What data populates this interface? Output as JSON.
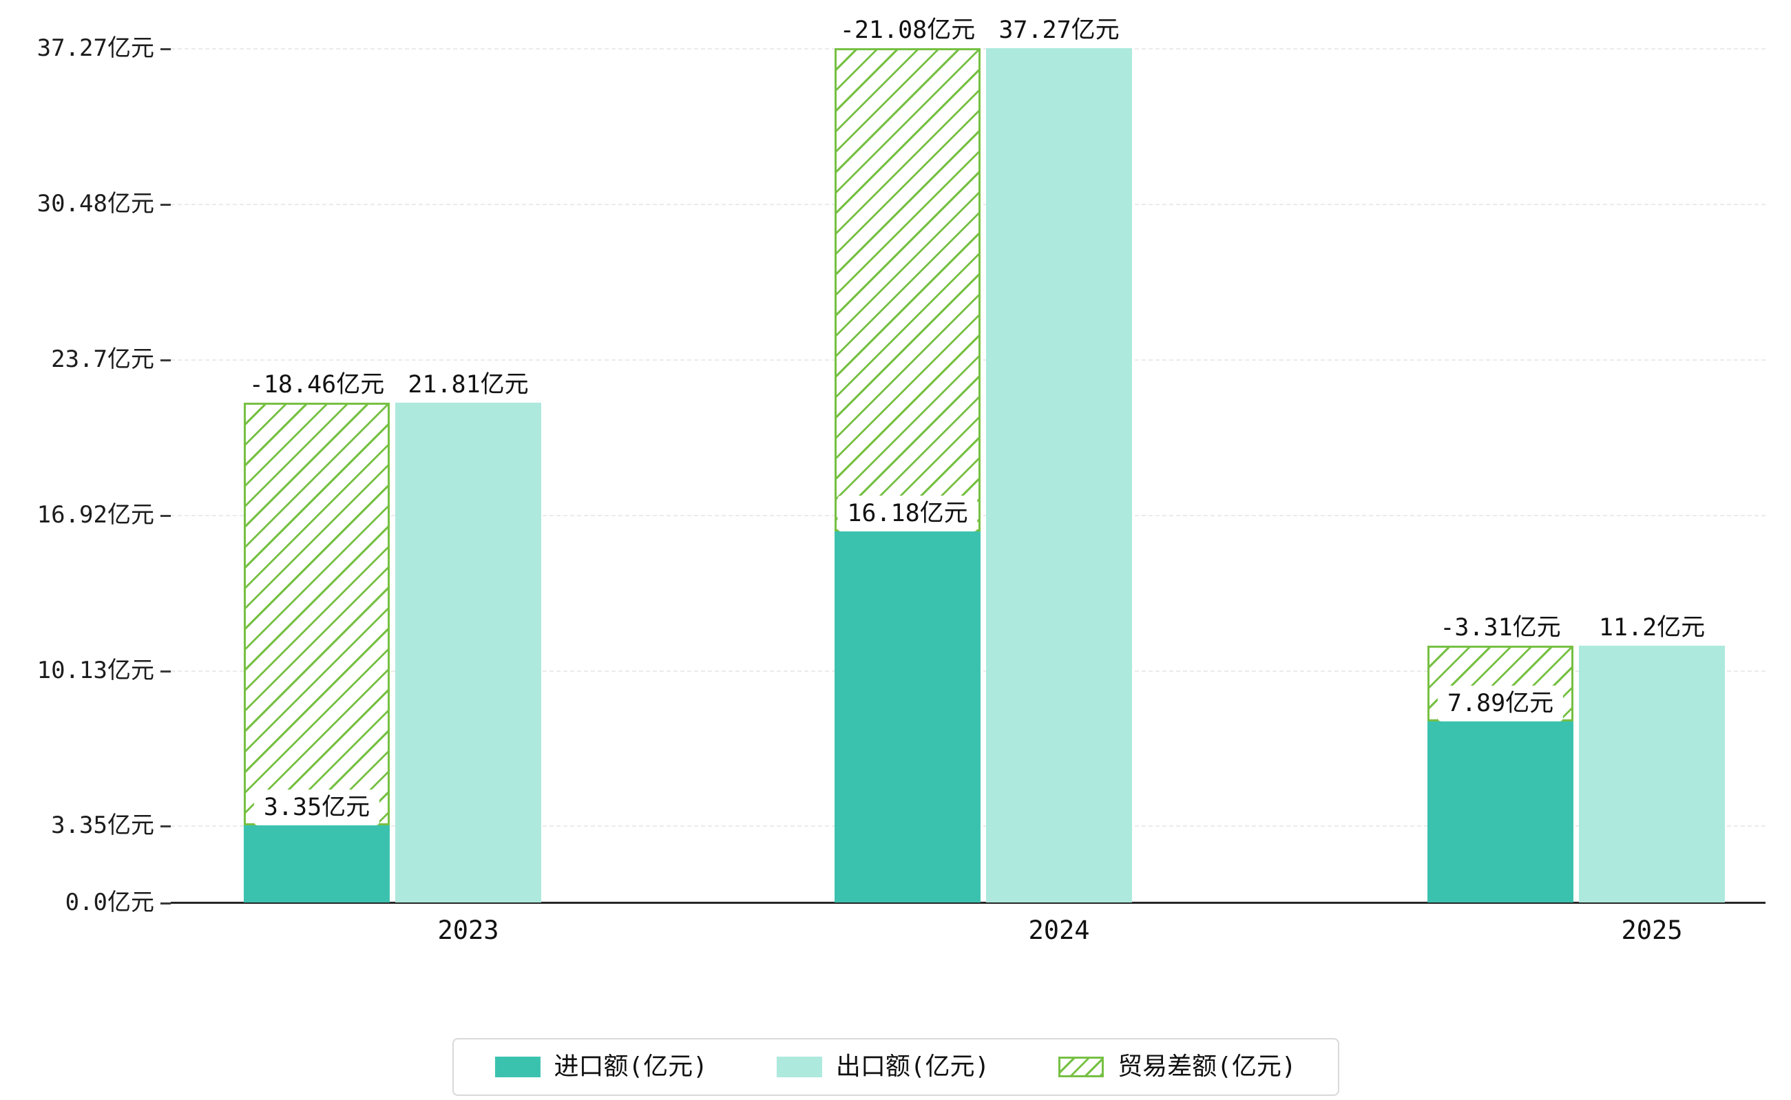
{
  "chart_data": {
    "type": "bar",
    "title": "",
    "categories": [
      "2023",
      "2024",
      "2025"
    ],
    "series": [
      {
        "name": "进口额(亿元)",
        "values": [
          3.35,
          16.18,
          7.89
        ],
        "color": "#3BC2AF",
        "style": "solid"
      },
      {
        "name": "出口额(亿元)",
        "values": [
          21.81,
          37.27,
          11.2
        ],
        "color": "#ADE9DD",
        "style": "solid"
      },
      {
        "name": "贸易差额(亿元)",
        "values": [
          -18.46,
          -21.08,
          -3.31
        ],
        "color": "#76C043",
        "style": "hatched"
      }
    ],
    "bar_labels": {
      "import": [
        "3.35亿元",
        "16.18亿元",
        "7.89亿元"
      ],
      "export": [
        "21.81亿元",
        "37.27亿元",
        "11.2亿元"
      ],
      "balance": [
        "-18.46亿元",
        "-21.08亿元",
        "-3.31亿元"
      ]
    },
    "y_axis": {
      "unit": "亿元",
      "ylim": [
        0,
        37.27
      ],
      "ticks": [
        {
          "value": 0,
          "label": "0.0亿元"
        },
        {
          "value": 3.35,
          "label": "3.35亿元"
        },
        {
          "value": 10.13,
          "label": "10.13亿元"
        },
        {
          "value": 16.92,
          "label": "16.92亿元"
        },
        {
          "value": 23.7,
          "label": "23.7亿元"
        },
        {
          "value": 30.48,
          "label": "30.48亿元"
        },
        {
          "value": 37.27,
          "label": "37.27亿元"
        }
      ]
    },
    "grid": true,
    "legend_position": "bottom"
  }
}
